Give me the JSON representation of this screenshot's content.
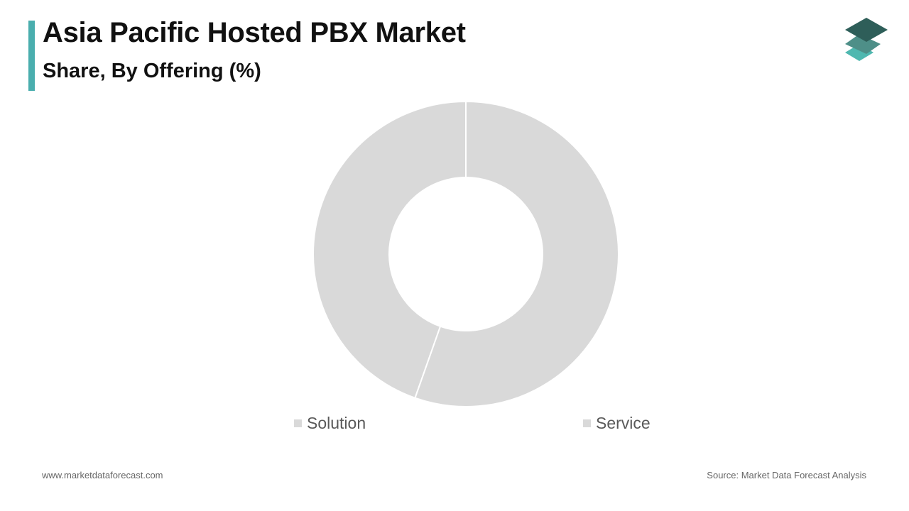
{
  "header": {
    "title": "Asia Pacific Hosted PBX Market",
    "subtitle": "Share, By Offering (%)"
  },
  "colors": {
    "accent": "#4aaeae",
    "logo_top": "#2e5e59",
    "logo_middle": "#4e8f88",
    "logo_bottom": "#4fb8b0",
    "slice_fill": "#d9d9d9",
    "slice_border": "#ffffff"
  },
  "icons": {
    "logo": "stacked-layers-icon"
  },
  "chart_data": {
    "type": "pie",
    "variant": "donut",
    "categories": [
      "Solution",
      "Service"
    ],
    "values": [
      44.6,
      55.4
    ],
    "start_angle_deg": 0,
    "direction": "counterclockwise",
    "legend_position": "bottom"
  },
  "legend": {
    "items": [
      {
        "label": "Solution"
      },
      {
        "label": "Service"
      }
    ]
  },
  "footer": {
    "website": "www.marketdataforecast.com",
    "source": "Source: Market Data Forecast Analysis"
  }
}
